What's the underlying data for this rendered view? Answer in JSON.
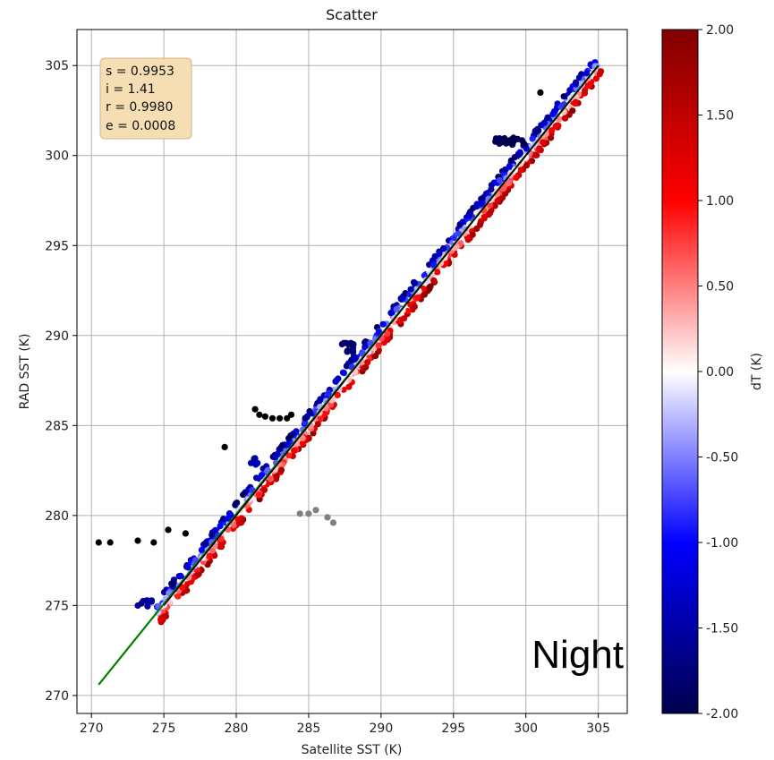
{
  "chart_data": {
    "type": "scatter",
    "title": "Scatter",
    "xlabel": "Satellite SST (K)",
    "ylabel": "RAD SST (K)",
    "xlim": [
      269,
      307
    ],
    "ylim": [
      269,
      307
    ],
    "xticks": [
      "270",
      "275",
      "280",
      "285",
      "290",
      "295",
      "300",
      "305"
    ],
    "yticks": [
      "270",
      "275",
      "280",
      "285",
      "290",
      "295",
      "300",
      "305"
    ],
    "grid": true,
    "stats": {
      "s_label": "s = 0.9953",
      "i_label": "i = 1.41",
      "r_label": "r = 0.9980",
      "e_label": "e = 0.0008",
      "box_color": "#f5deb3"
    },
    "annotation": "Night",
    "fit_line": {
      "x": [
        270.5,
        305
      ],
      "y": [
        270.6,
        305
      ],
      "color": "#008000"
    },
    "identity_line": {
      "x": [
        275,
        305
      ],
      "y": [
        275,
        305
      ],
      "color": "#000000"
    },
    "colorbar": {
      "label": "dT (K)",
      "range": [
        -2,
        2
      ],
      "ticks": [
        "-2.00",
        "-1.50",
        "-1.00",
        "-0.50",
        "0.00",
        "0.50",
        "1.00",
        "1.50",
        "2.00"
      ],
      "colormap": "seismic"
    },
    "outliers_black": {
      "color": "#000000",
      "points": [
        [
          270.5,
          278.5
        ],
        [
          271.3,
          278.5
        ],
        [
          273.2,
          278.6
        ],
        [
          274.3,
          278.5
        ],
        [
          275.3,
          279.2
        ],
        [
          276.5,
          279.0
        ],
        [
          279.2,
          283.8
        ],
        [
          281.3,
          285.9
        ],
        [
          281.6,
          285.6
        ],
        [
          282.0,
          285.5
        ],
        [
          282.5,
          285.4
        ],
        [
          283.0,
          285.4
        ],
        [
          283.5,
          285.4
        ],
        [
          283.8,
          285.6
        ],
        [
          301.0,
          303.5
        ]
      ]
    },
    "outliers_gray": {
      "color": "#808080",
      "points": [
        [
          284.4,
          280.1
        ],
        [
          285.0,
          280.1
        ],
        [
          285.5,
          280.3
        ],
        [
          286.3,
          279.9
        ],
        [
          286.7,
          279.6
        ]
      ]
    },
    "clusters": [
      {
        "name": "",
        "dT": -1.6,
        "x": [
          273.2,
          274.2
        ],
        "y": [
          274.9,
          275.3
        ],
        "n": 10
      },
      {
        "name": "",
        "dT": -1.8,
        "x": [
          287.2,
          288.1
        ],
        "y": [
          289.0,
          289.6
        ],
        "n": 12
      },
      {
        "name": "",
        "dT": -2.0,
        "x": [
          297.6,
          299.9
        ],
        "y": [
          300.6,
          301.0
        ],
        "n": 22
      },
      {
        "name": "",
        "dT": -1.4,
        "x": [
          281.0,
          281.8
        ],
        "y": [
          282.7,
          283.2
        ],
        "n": 5
      }
    ],
    "main_band": {
      "x_range": [
        274.5,
        305
      ],
      "dT_range": [
        -2,
        2
      ],
      "description": "points colored by dT scatter closely along 1:1 line; blue above, red below"
    }
  }
}
